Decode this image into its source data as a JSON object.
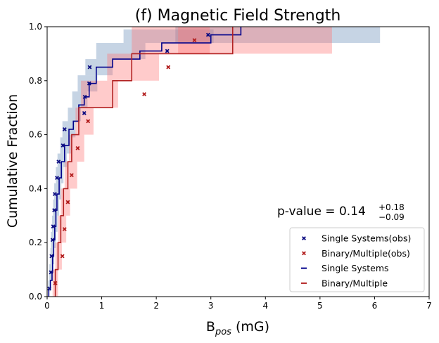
{
  "chart_data": {
    "type": "line",
    "title": "(f) Magnetic Field Strength",
    "xlabel_base": "B",
    "xlabel_sub": "pos",
    "xlabel_unit": " (mG)",
    "ylabel": "Cumulative Fraction",
    "xlim": [
      0,
      7
    ],
    "ylim": [
      0,
      1
    ],
    "xticks": [
      "0",
      "1",
      "2",
      "3",
      "4",
      "5",
      "6",
      "7"
    ],
    "yticks": [
      "0.0",
      "0.2",
      "0.4",
      "0.6",
      "0.8",
      "1.0"
    ],
    "annotation": {
      "prefix": "p-value = 0.14",
      "sup": "+0.18",
      "sub": "−0.09"
    },
    "legend": {
      "placement": "lower-right",
      "entries": [
        {
          "label": "Single Systems(obs)",
          "kind": "marker",
          "color": "#0a0a80"
        },
        {
          "label": "Binary/Multiple(obs)",
          "kind": "marker",
          "color": "#b01818"
        },
        {
          "label": "Single Systems",
          "kind": "line",
          "color": "#00008b"
        },
        {
          "label": "Binary/Multiple",
          "kind": "line",
          "color": "#b22222"
        }
      ]
    },
    "series": [
      {
        "name": "Single Systems",
        "line_color": "#00008b",
        "marker_color": "#0a0a80",
        "band_color": "#4f7aaa",
        "band_opacity": 0.32,
        "step_x": [
          0.03,
          0.06,
          0.09,
          0.1,
          0.12,
          0.14,
          0.16,
          0.18,
          0.22,
          0.26,
          0.32,
          0.4,
          0.48,
          0.58,
          0.68,
          0.77,
          0.9,
          1.2,
          1.7,
          2.1,
          3.0,
          3.55
        ],
        "step_y": [
          0.03,
          0.06,
          0.09,
          0.15,
          0.21,
          0.26,
          0.32,
          0.38,
          0.44,
          0.5,
          0.56,
          0.62,
          0.65,
          0.71,
          0.74,
          0.79,
          0.85,
          0.88,
          0.91,
          0.94,
          0.97,
          1.0
        ],
        "obs_x": [
          0.04,
          0.07,
          0.08,
          0.1,
          0.11,
          0.13,
          0.14,
          0.18,
          0.21,
          0.29,
          0.32,
          0.68,
          0.69,
          0.77,
          0.78,
          2.2,
          2.95
        ],
        "obs_y": [
          0.03,
          0.09,
          0.15,
          0.21,
          0.26,
          0.32,
          0.38,
          0.44,
          0.5,
          0.56,
          0.62,
          0.68,
          0.74,
          0.79,
          0.85,
          0.91,
          0.97
        ],
        "bands": [
          [
            0.02,
            0.07,
            0.02,
            0.06
          ],
          [
            0.04,
            0.1,
            0.06,
            0.12
          ],
          [
            0.06,
            0.13,
            0.12,
            0.18
          ],
          [
            0.07,
            0.16,
            0.18,
            0.24
          ],
          [
            0.09,
            0.19,
            0.24,
            0.3
          ],
          [
            0.11,
            0.22,
            0.3,
            0.36
          ],
          [
            0.13,
            0.26,
            0.36,
            0.42
          ],
          [
            0.16,
            0.3,
            0.42,
            0.48
          ],
          [
            0.19,
            0.36,
            0.48,
            0.53
          ],
          [
            0.24,
            0.44,
            0.53,
            0.59
          ],
          [
            0.28,
            0.52,
            0.59,
            0.65
          ],
          [
            0.38,
            0.62,
            0.65,
            0.7
          ],
          [
            0.46,
            0.74,
            0.7,
            0.76
          ],
          [
            0.56,
            0.92,
            0.76,
            0.82
          ],
          [
            0.7,
            1.2,
            0.82,
            0.88
          ],
          [
            0.9,
            1.8,
            0.88,
            0.94
          ],
          [
            1.4,
            3.05,
            0.94,
            0.99
          ],
          [
            2.35,
            6.1,
            0.94,
            1.0
          ]
        ]
      },
      {
        "name": "Binary/Multiple",
        "line_color": "#b22222",
        "marker_color": "#b01818",
        "band_color": "#ff7777",
        "band_opacity": 0.38,
        "step_x": [
          0.15,
          0.2,
          0.25,
          0.3,
          0.38,
          0.45,
          0.58,
          0.8,
          1.2,
          1.55,
          2.2,
          3.4
        ],
        "step_y": [
          0.1,
          0.2,
          0.3,
          0.4,
          0.5,
          0.6,
          0.7,
          0.7,
          0.8,
          0.9,
          0.9,
          1.0
        ],
        "obs_x": [
          0.15,
          0.28,
          0.32,
          0.38,
          0.45,
          0.56,
          0.75,
          1.78,
          2.22,
          2.7
        ],
        "obs_y": [
          0.05,
          0.15,
          0.25,
          0.35,
          0.45,
          0.55,
          0.65,
          0.75,
          0.85,
          0.95
        ],
        "bands": [
          [
            0.1,
            0.2,
            0.0,
            0.1
          ],
          [
            0.15,
            0.27,
            0.1,
            0.2
          ],
          [
            0.2,
            0.35,
            0.2,
            0.3
          ],
          [
            0.25,
            0.42,
            0.3,
            0.4
          ],
          [
            0.32,
            0.55,
            0.4,
            0.5
          ],
          [
            0.4,
            0.68,
            0.5,
            0.6
          ],
          [
            0.52,
            0.85,
            0.6,
            0.7
          ],
          [
            0.62,
            1.3,
            0.7,
            0.8
          ],
          [
            1.1,
            2.05,
            0.8,
            0.9
          ],
          [
            1.55,
            2.98,
            0.9,
            1.0
          ],
          [
            2.4,
            5.22,
            0.9,
            1.0
          ]
        ]
      }
    ]
  }
}
